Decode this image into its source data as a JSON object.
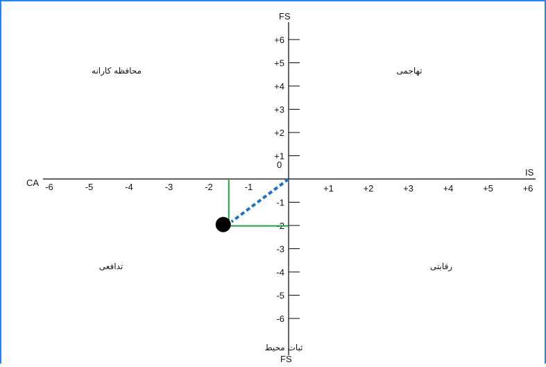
{
  "axes": {
    "y_top_label": "FS",
    "y_bottom_label": "FS",
    "x_left_label": "CA",
    "x_right_label": "IS",
    "y_bottom_caption": "ثبات محیط",
    "origin_label": "0"
  },
  "quadrants": {
    "top_left": "محافظه کارانه",
    "top_right": "تهاجمی",
    "bottom_left": "تدافعی",
    "bottom_right": "رقابتی"
  },
  "x_ticks": [
    {
      "value": -6,
      "label": "-6"
    },
    {
      "value": -5,
      "label": "-5"
    },
    {
      "value": -4,
      "label": "-4"
    },
    {
      "value": -3,
      "label": "-3"
    },
    {
      "value": -2,
      "label": "-2"
    },
    {
      "value": -1,
      "label": "-1"
    },
    {
      "value": 1,
      "label": "+1"
    },
    {
      "value": 2,
      "label": "+2"
    },
    {
      "value": 3,
      "label": "+3"
    },
    {
      "value": 4,
      "label": "+4"
    },
    {
      "value": 5,
      "label": "+5"
    },
    {
      "value": 6,
      "label": "+6"
    }
  ],
  "y_ticks": [
    {
      "value": 6,
      "label": "+6"
    },
    {
      "value": 5,
      "label": "+5"
    },
    {
      "value": 4,
      "label": "+4"
    },
    {
      "value": 3,
      "label": "+3"
    },
    {
      "value": 2,
      "label": "+2"
    },
    {
      "value": 1,
      "label": "+1"
    },
    {
      "value": -1,
      "label": "-1"
    },
    {
      "value": -2,
      "label": "-2"
    },
    {
      "value": -3,
      "label": "-3"
    },
    {
      "value": -4,
      "label": "-4"
    },
    {
      "value": -5,
      "label": "-5"
    },
    {
      "value": -6,
      "label": "-6"
    }
  ],
  "vector_point": {
    "x": -1.5,
    "y": -1.9
  },
  "colors": {
    "axis": "#000000",
    "vector": "#1f6fd0",
    "guide": "#22a04b",
    "point": "#000000",
    "frame": "#2f80ed"
  }
}
